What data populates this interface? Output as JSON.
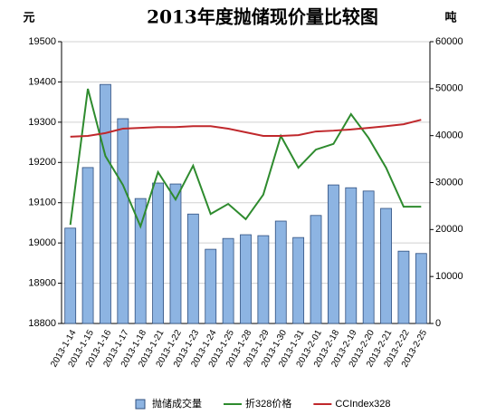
{
  "chart_data": {
    "type": "bar-line",
    "title": "2013年度抛储现价量比较图",
    "y_label": "元",
    "y2_label": "吨",
    "categories": [
      "2013-1-14",
      "2013-1-15",
      "2013-1-16",
      "2013-1-17",
      "2013-1-18",
      "2013-1-21",
      "2013-1-22",
      "2013-1-23",
      "2013-1-24",
      "2013-1-25",
      "2013-1-28",
      "2013-1-29",
      "2013-1-30",
      "2013-1-31",
      "2013-2-01",
      "2013-2-18",
      "2013-2-19",
      "2013-2-20",
      "2013-2-21",
      "2013-2-22",
      "2013-2-25"
    ],
    "series": [
      {
        "name": "抛储成交量",
        "type": "bar",
        "axis": "y2",
        "color": "#8db4e2",
        "values": [
          20300,
          33200,
          50900,
          43600,
          26600,
          29900,
          29700,
          23300,
          15800,
          18100,
          18900,
          18700,
          21800,
          18300,
          23000,
          29500,
          28900,
          28200,
          24500,
          15400,
          14900
        ]
      },
      {
        "name": "折328价格",
        "type": "line",
        "axis": "y",
        "color": "#2e8b2e",
        "values": [
          19045,
          19383,
          19216,
          19144,
          19041,
          19176,
          19108,
          19192,
          19072,
          19097,
          19059,
          19120,
          19266,
          19187,
          19232,
          19246,
          19320,
          19261,
          19187,
          19090,
          19090
        ]
      },
      {
        "name": "CCIndex328",
        "type": "line",
        "axis": "y",
        "color": "#c0282c",
        "values": [
          19264,
          19266,
          19273,
          19284,
          19286,
          19288,
          19288,
          19290,
          19290,
          19284,
          19275,
          19266,
          19266,
          19268,
          19277,
          19279,
          19282,
          19286,
          19290,
          19295,
          19306
        ]
      }
    ],
    "ylim": [
      18800,
      19500
    ],
    "yticks": [
      18800,
      18900,
      19000,
      19100,
      19200,
      19300,
      19400,
      19500
    ],
    "y2lim": [
      0,
      60000
    ],
    "y2ticks": [
      0,
      10000,
      20000,
      30000,
      40000,
      50000,
      60000
    ],
    "grid": true,
    "legend": "bottom"
  }
}
